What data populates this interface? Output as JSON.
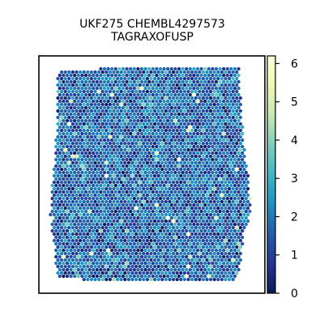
{
  "chart_data": {
    "type": "heatmap",
    "title_lines": [
      "UKF275 CHEMBL4297573",
      "TAGRAXOFUSP"
    ],
    "xlabel": "",
    "ylabel": "",
    "colorbar": {
      "colormap": "YlGnBu",
      "range": [
        0,
        6.2
      ],
      "ticks": [
        0,
        1,
        2,
        3,
        4,
        5,
        6
      ],
      "tick_labels": [
        "0",
        "1",
        "2",
        "3",
        "4",
        "5",
        "6"
      ],
      "colors": [
        "#081d58",
        "#253494",
        "#225ea8",
        "#1d91c0",
        "#41b6c4",
        "#7fcdbb",
        "#c7e9b4",
        "#edf8b1",
        "#ffffd9"
      ]
    },
    "spots": {
      "shape": "hexagonal spatial spot grid",
      "typical_value": 1.6,
      "min": 0,
      "max": 6.2,
      "distribution": "mostly 0.5–2.5 with scattered bright spots up to ~6"
    },
    "grid": false,
    "frame": true
  }
}
